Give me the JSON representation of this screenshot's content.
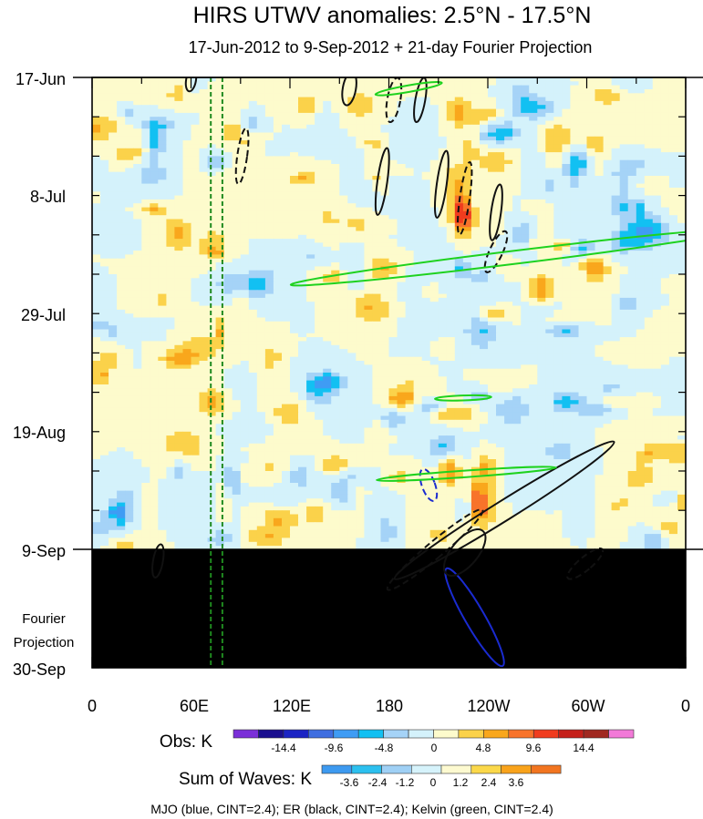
{
  "chart_data": {
    "type": "heatmap",
    "title": "HIRS UTWV anomalies: 2.5°N - 17.5°N",
    "subtitle": "17-Jun-2012 to 9-Sep-2012 + 21-day Fourier Projection",
    "y_ticks": [
      "17-Jun",
      "8-Jul",
      "29-Jul",
      "19-Aug",
      "9-Sep",
      "30-Sep"
    ],
    "x_ticks": [
      "0",
      "60E",
      "120E",
      "180",
      "120W",
      "60W",
      "0"
    ],
    "x_range_deg_east": [
      0,
      360
    ],
    "time_range_days": [
      0,
      105
    ],
    "observation_end_day": 84,
    "projection_label_line1": "Fourier",
    "projection_label_line2": "Projection",
    "obs_colorbar": {
      "label": "Obs: K",
      "tick_labels": [
        "-14.4",
        "-9.6",
        "-4.8",
        "0",
        "4.8",
        "9.6",
        "14.4"
      ],
      "colors": [
        "#7b2fd8",
        "#1a0f8f",
        "#1b24c4",
        "#3f6ee0",
        "#3f9cf4",
        "#12c0f2",
        "#a5d3f7",
        "#d4f2fb",
        "#fdfbcc",
        "#fbd24a",
        "#f9a71c",
        "#f8732a",
        "#f03c1e",
        "#c5201a",
        "#a02820",
        "#f27ad8"
      ]
    },
    "waves_colorbar": {
      "label": "Sum of Waves: K",
      "tick_labels": [
        "-3.6",
        "-2.4",
        "-1.2",
        "0",
        "1.2",
        "2.4",
        "3.6"
      ],
      "colors": [
        "#3d9af0",
        "#2cc0ef",
        "#9fd0f5",
        "#d6f3fb",
        "#fdfad0",
        "#fbd84a",
        "#f9a31b",
        "#f27520"
      ]
    },
    "footnote": "MJO (blue, CINT=2.4); ER (black, CINT=2.4); Kelvin (green, CINT=2.4)",
    "wave_contours": [
      {
        "wave": "MJO",
        "color": "#1a2bd0",
        "sign": "pos",
        "lon": 232,
        "day": 96,
        "semi_lon": 6,
        "semi_day": 10,
        "tilt": -30
      },
      {
        "wave": "MJO",
        "color": "#1a2bd0",
        "sign": "neg",
        "lon": 204,
        "day": 72.5,
        "semi_lon": 4,
        "semi_day": 3,
        "tilt": -20
      },
      {
        "wave": "ER",
        "color": "#111111",
        "sign": "pos",
        "lon": 250,
        "day": 77,
        "semi_lon": 6,
        "semi_day": 23,
        "tilt": 58
      },
      {
        "wave": "ER",
        "color": "#111111",
        "sign": "pos",
        "lon": 226,
        "day": 84.5,
        "semi_lon": 8,
        "semi_day": 5,
        "tilt": 40
      },
      {
        "wave": "ER",
        "color": "#111111",
        "sign": "neg",
        "lon": 208,
        "day": 84,
        "semi_lon": 5,
        "semi_day": 11,
        "tilt": 50
      },
      {
        "wave": "ER",
        "color": "#111111",
        "sign": "neg",
        "lon": 245,
        "day": 31,
        "semi_lon": 4,
        "semi_day": 4,
        "tilt": 25
      },
      {
        "wave": "ER",
        "color": "#111111",
        "sign": "neg",
        "lon": 299,
        "day": 86.5,
        "semi_lon": 4,
        "semi_day": 4,
        "tilt": 50
      },
      {
        "wave": "ER",
        "color": "#111111",
        "sign": "pos",
        "lon": 156,
        "day": 2,
        "semi_lon": 4,
        "semi_day": 3,
        "tilt": 10
      },
      {
        "wave": "ER",
        "color": "#111111",
        "sign": "neg",
        "lon": 183,
        "day": 4,
        "semi_lon": 4,
        "semi_day": 4,
        "tilt": 10
      },
      {
        "wave": "ER",
        "color": "#111111",
        "sign": "pos",
        "lon": 199,
        "day": 4,
        "semi_lon": 3,
        "semi_day": 4,
        "tilt": 10
      },
      {
        "wave": "ER",
        "color": "#111111",
        "sign": "neg",
        "lon": 91,
        "day": 14,
        "semi_lon": 3,
        "semi_day": 5,
        "tilt": 8
      },
      {
        "wave": "ER",
        "color": "#111111",
        "sign": "pos",
        "lon": 176,
        "day": 18.5,
        "semi_lon": 3,
        "semi_day": 6,
        "tilt": 8
      },
      {
        "wave": "ER",
        "color": "#111111",
        "sign": "pos",
        "lon": 212,
        "day": 19,
        "semi_lon": 3,
        "semi_day": 6,
        "tilt": 8
      },
      {
        "wave": "ER",
        "color": "#111111",
        "sign": "neg",
        "lon": 226,
        "day": 21.5,
        "semi_lon": 3,
        "semi_day": 6.5,
        "tilt": 8
      },
      {
        "wave": "ER",
        "color": "#111111",
        "sign": "pos",
        "lon": 245,
        "day": 24,
        "semi_lon": 3,
        "semi_day": 5,
        "tilt": 8
      },
      {
        "wave": "ER",
        "color": "#111111",
        "sign": "pos",
        "lon": 40,
        "day": 86,
        "semi_lon": 3,
        "semi_day": 3,
        "tilt": 10
      },
      {
        "wave": "ER",
        "color": "#111111",
        "sign": "pos",
        "lon": 60,
        "day": 0.5,
        "semi_lon": 3,
        "semi_day": 2,
        "tilt": 10
      },
      {
        "wave": "Kelvin",
        "color": "#1ed21e",
        "sign": "pos",
        "lon": 256,
        "day": 32,
        "semi_lon": 4,
        "semi_day": 40,
        "tilt": 83
      },
      {
        "wave": "Kelvin",
        "color": "#1ed21e",
        "sign": "pos",
        "lon": 227,
        "day": 70.5,
        "semi_lon": 2,
        "semi_day": 16,
        "tilt": 86
      },
      {
        "wave": "Kelvin",
        "color": "#1ed21e",
        "sign": "pos",
        "lon": 192,
        "day": 2,
        "semi_lon": 2,
        "semi_day": 6,
        "tilt": 80
      },
      {
        "wave": "Kelvin",
        "color": "#1ed21e",
        "sign": "pos",
        "lon": 225,
        "day": 57,
        "semi_lon": 1.5,
        "semi_day": 5,
        "tilt": 88
      }
    ],
    "vertical_lines": [
      {
        "color": "#1f8a1f",
        "style": "dashed",
        "lon": 72
      },
      {
        "color": "#1f8a1f",
        "style": "dashed",
        "lon": 79
      }
    ]
  }
}
